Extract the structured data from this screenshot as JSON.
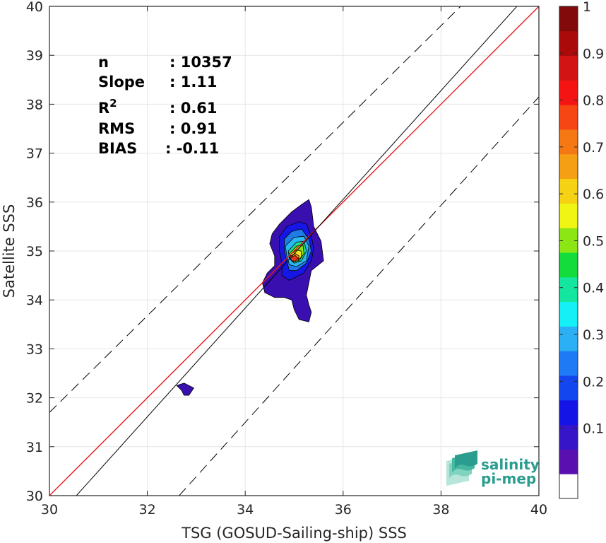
{
  "chart_data": {
    "type": "heatmap",
    "title": "",
    "xlabel": "TSG (GOSUD-Sailing-ship) SSS",
    "ylabel": "Satellite SSS",
    "xlim": [
      30,
      40
    ],
    "ylim": [
      30,
      40
    ],
    "x_ticks": [
      "30",
      "32",
      "34",
      "36",
      "38",
      "40"
    ],
    "y_ticks": [
      "30",
      "31",
      "32",
      "33",
      "34",
      "35",
      "36",
      "37",
      "38",
      "39",
      "40"
    ],
    "grid": true,
    "stats": [
      {
        "label": "n",
        "value": ": 10357"
      },
      {
        "label": "Slope",
        "value": ": 1.11"
      },
      {
        "label": "R²",
        "value": ": 0.61"
      },
      {
        "label": "RMS",
        "value": ": 0.91"
      },
      {
        "label": "BIAS",
        "value": ": -0.11"
      }
    ],
    "reference_lines": [
      {
        "type": "identity",
        "color": "#e41a1c",
        "x": [
          30,
          40
        ],
        "y": [
          30,
          40
        ]
      },
      {
        "type": "regression",
        "color": "#000000",
        "x": [
          30.55,
          40
        ],
        "y": [
          30,
          40.5
        ]
      },
      {
        "type": "offset-upper",
        "color": "#000000",
        "dash": true,
        "x": [
          30,
          38.4
        ],
        "y": [
          31.7,
          40
        ]
      },
      {
        "type": "offset-lower",
        "color": "#000000",
        "dash": true,
        "x": [
          32.65,
          40
        ],
        "y": [
          30,
          38.15
        ]
      }
    ],
    "contours": [
      {
        "level": 0.05,
        "color": "#3a0fb0",
        "points": [
          [
            34.55,
            35.35
          ],
          [
            34.7,
            35.55
          ],
          [
            34.95,
            35.8
          ],
          [
            35.15,
            35.95
          ],
          [
            35.3,
            36.05
          ],
          [
            35.35,
            35.9
          ],
          [
            35.4,
            35.5
          ],
          [
            35.55,
            35.2
          ],
          [
            35.6,
            34.8
          ],
          [
            35.35,
            34.6
          ],
          [
            35.3,
            34.35
          ],
          [
            35.25,
            34.1
          ],
          [
            35.3,
            33.9
          ],
          [
            35.35,
            33.75
          ],
          [
            35.3,
            33.55
          ],
          [
            35.1,
            33.6
          ],
          [
            35.0,
            33.8
          ],
          [
            34.95,
            34.0
          ],
          [
            34.8,
            34.05
          ],
          [
            34.6,
            34.05
          ],
          [
            34.4,
            34.15
          ],
          [
            34.35,
            34.35
          ],
          [
            34.45,
            34.55
          ],
          [
            34.6,
            34.7
          ],
          [
            34.6,
            34.9
          ],
          [
            34.5,
            35.15
          ]
        ]
      },
      {
        "level": 0.05,
        "color": "#3a0fb0",
        "points": [
          [
            32.6,
            32.25
          ],
          [
            32.75,
            32.3
          ],
          [
            32.95,
            32.2
          ],
          [
            32.85,
            32.05
          ],
          [
            32.75,
            32.05
          ],
          [
            32.7,
            32.15
          ]
        ]
      },
      {
        "level": 0.15,
        "color": "#1616e6",
        "points": [
          [
            34.7,
            35.3
          ],
          [
            34.85,
            35.5
          ],
          [
            35.1,
            35.6
          ],
          [
            35.25,
            35.55
          ],
          [
            35.35,
            35.3
          ],
          [
            35.4,
            35.05
          ],
          [
            35.35,
            34.8
          ],
          [
            35.2,
            34.55
          ],
          [
            35.0,
            34.45
          ],
          [
            34.9,
            34.4
          ],
          [
            34.75,
            34.5
          ],
          [
            34.75,
            34.75
          ],
          [
            34.7,
            35.0
          ]
        ]
      },
      {
        "level": 0.25,
        "color": "#1f7be6",
        "points": [
          [
            34.8,
            35.25
          ],
          [
            34.95,
            35.4
          ],
          [
            35.15,
            35.45
          ],
          [
            35.3,
            35.25
          ],
          [
            35.35,
            35.0
          ],
          [
            35.25,
            34.75
          ],
          [
            35.05,
            34.6
          ],
          [
            34.9,
            34.6
          ],
          [
            34.85,
            34.8
          ],
          [
            34.8,
            35.0
          ]
        ]
      },
      {
        "level": 0.35,
        "color": "#2bb7f5",
        "points": [
          [
            34.82,
            35.1
          ],
          [
            35.0,
            35.28
          ],
          [
            35.2,
            35.3
          ],
          [
            35.3,
            35.1
          ],
          [
            35.25,
            34.8
          ],
          [
            35.05,
            34.68
          ],
          [
            34.9,
            34.72
          ],
          [
            34.85,
            34.9
          ]
        ]
      },
      {
        "level": 0.45,
        "color": "#1ee08a",
        "points": [
          [
            34.88,
            35.0
          ],
          [
            35.05,
            35.18
          ],
          [
            35.2,
            35.2
          ],
          [
            35.25,
            35.0
          ],
          [
            35.15,
            34.8
          ],
          [
            35.0,
            34.75
          ],
          [
            34.9,
            34.85
          ]
        ]
      },
      {
        "level": 0.55,
        "color": "#8de01a",
        "points": [
          [
            34.9,
            34.95
          ],
          [
            35.05,
            35.1
          ],
          [
            35.18,
            35.12
          ],
          [
            35.2,
            34.95
          ],
          [
            35.1,
            34.8
          ],
          [
            34.98,
            34.8
          ]
        ]
      },
      {
        "level": 0.65,
        "color": "#f5e61a",
        "points": [
          [
            34.92,
            34.92
          ],
          [
            35.05,
            35.02
          ],
          [
            35.14,
            35.0
          ],
          [
            35.15,
            34.88
          ],
          [
            35.05,
            34.8
          ],
          [
            34.96,
            34.82
          ]
        ]
      },
      {
        "level": 0.75,
        "color": "#ff8c1a",
        "points": [
          [
            34.9,
            34.88
          ],
          [
            35.02,
            34.95
          ],
          [
            35.1,
            34.9
          ],
          [
            35.08,
            34.8
          ],
          [
            34.98,
            34.78
          ]
        ]
      },
      {
        "level": 0.85,
        "color": "#e8321a",
        "points": [
          [
            34.92,
            34.86
          ],
          [
            35.02,
            34.91
          ],
          [
            35.08,
            34.85
          ],
          [
            35.02,
            34.79
          ],
          [
            34.95,
            34.8
          ]
        ]
      }
    ],
    "colorbar": {
      "ticks": [
        "0.1",
        "0.2",
        "0.3",
        "0.4",
        "0.5",
        "0.6",
        "0.7",
        "0.8",
        "0.9",
        "1"
      ],
      "colors": [
        "#ffffff",
        "#5a0fb0",
        "#3614c8",
        "#1414e6",
        "#1446f0",
        "#1f7bf5",
        "#2bb0f5",
        "#14f0f5",
        "#14e6a0",
        "#14dc3c",
        "#8ce614",
        "#f0f514",
        "#f5d214",
        "#f5a014",
        "#f57814",
        "#f54614",
        "#f51414",
        "#d21414",
        "#aa0a0a",
        "#820a0a"
      ]
    },
    "logo": {
      "line1": "salinity",
      "line2": "pi-mep"
    }
  }
}
